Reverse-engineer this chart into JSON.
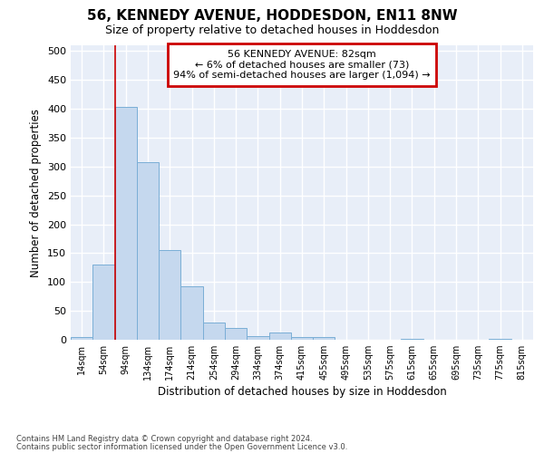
{
  "title": "56, KENNEDY AVENUE, HODDESDON, EN11 8NW",
  "subtitle": "Size of property relative to detached houses in Hoddesdon",
  "xlabel": "Distribution of detached houses by size in Hoddesdon",
  "ylabel": "Number of detached properties",
  "bar_color": "#c5d8ee",
  "bar_edge_color": "#7aaed6",
  "background_color": "#ffffff",
  "plot_bg_color": "#e8eef8",
  "grid_color": "#ffffff",
  "categories": [
    "14sqm",
    "54sqm",
    "94sqm",
    "134sqm",
    "174sqm",
    "214sqm",
    "254sqm",
    "294sqm",
    "334sqm",
    "374sqm",
    "415sqm",
    "455sqm",
    "495sqm",
    "535sqm",
    "575sqm",
    "615sqm",
    "655sqm",
    "695sqm",
    "735sqm",
    "775sqm",
    "815sqm"
  ],
  "values": [
    5,
    130,
    403,
    308,
    155,
    92,
    30,
    20,
    7,
    12,
    4,
    5,
    0,
    0,
    0,
    2,
    0,
    0,
    0,
    2,
    0
  ],
  "annotation_line1": "56 KENNEDY AVENUE: 82sqm",
  "annotation_line2": "← 6% of detached houses are smaller (73)",
  "annotation_line3": "94% of semi-detached houses are larger (1,094) →",
  "annotation_box_edge_color": "#cc0000",
  "vline_color": "#cc0000",
  "vline_x_index": 1.5,
  "ylim": [
    0,
    510
  ],
  "yticks": [
    0,
    50,
    100,
    150,
    200,
    250,
    300,
    350,
    400,
    450,
    500
  ],
  "footnote1": "Contains HM Land Registry data © Crown copyright and database right 2024.",
  "footnote2": "Contains public sector information licensed under the Open Government Licence v3.0."
}
